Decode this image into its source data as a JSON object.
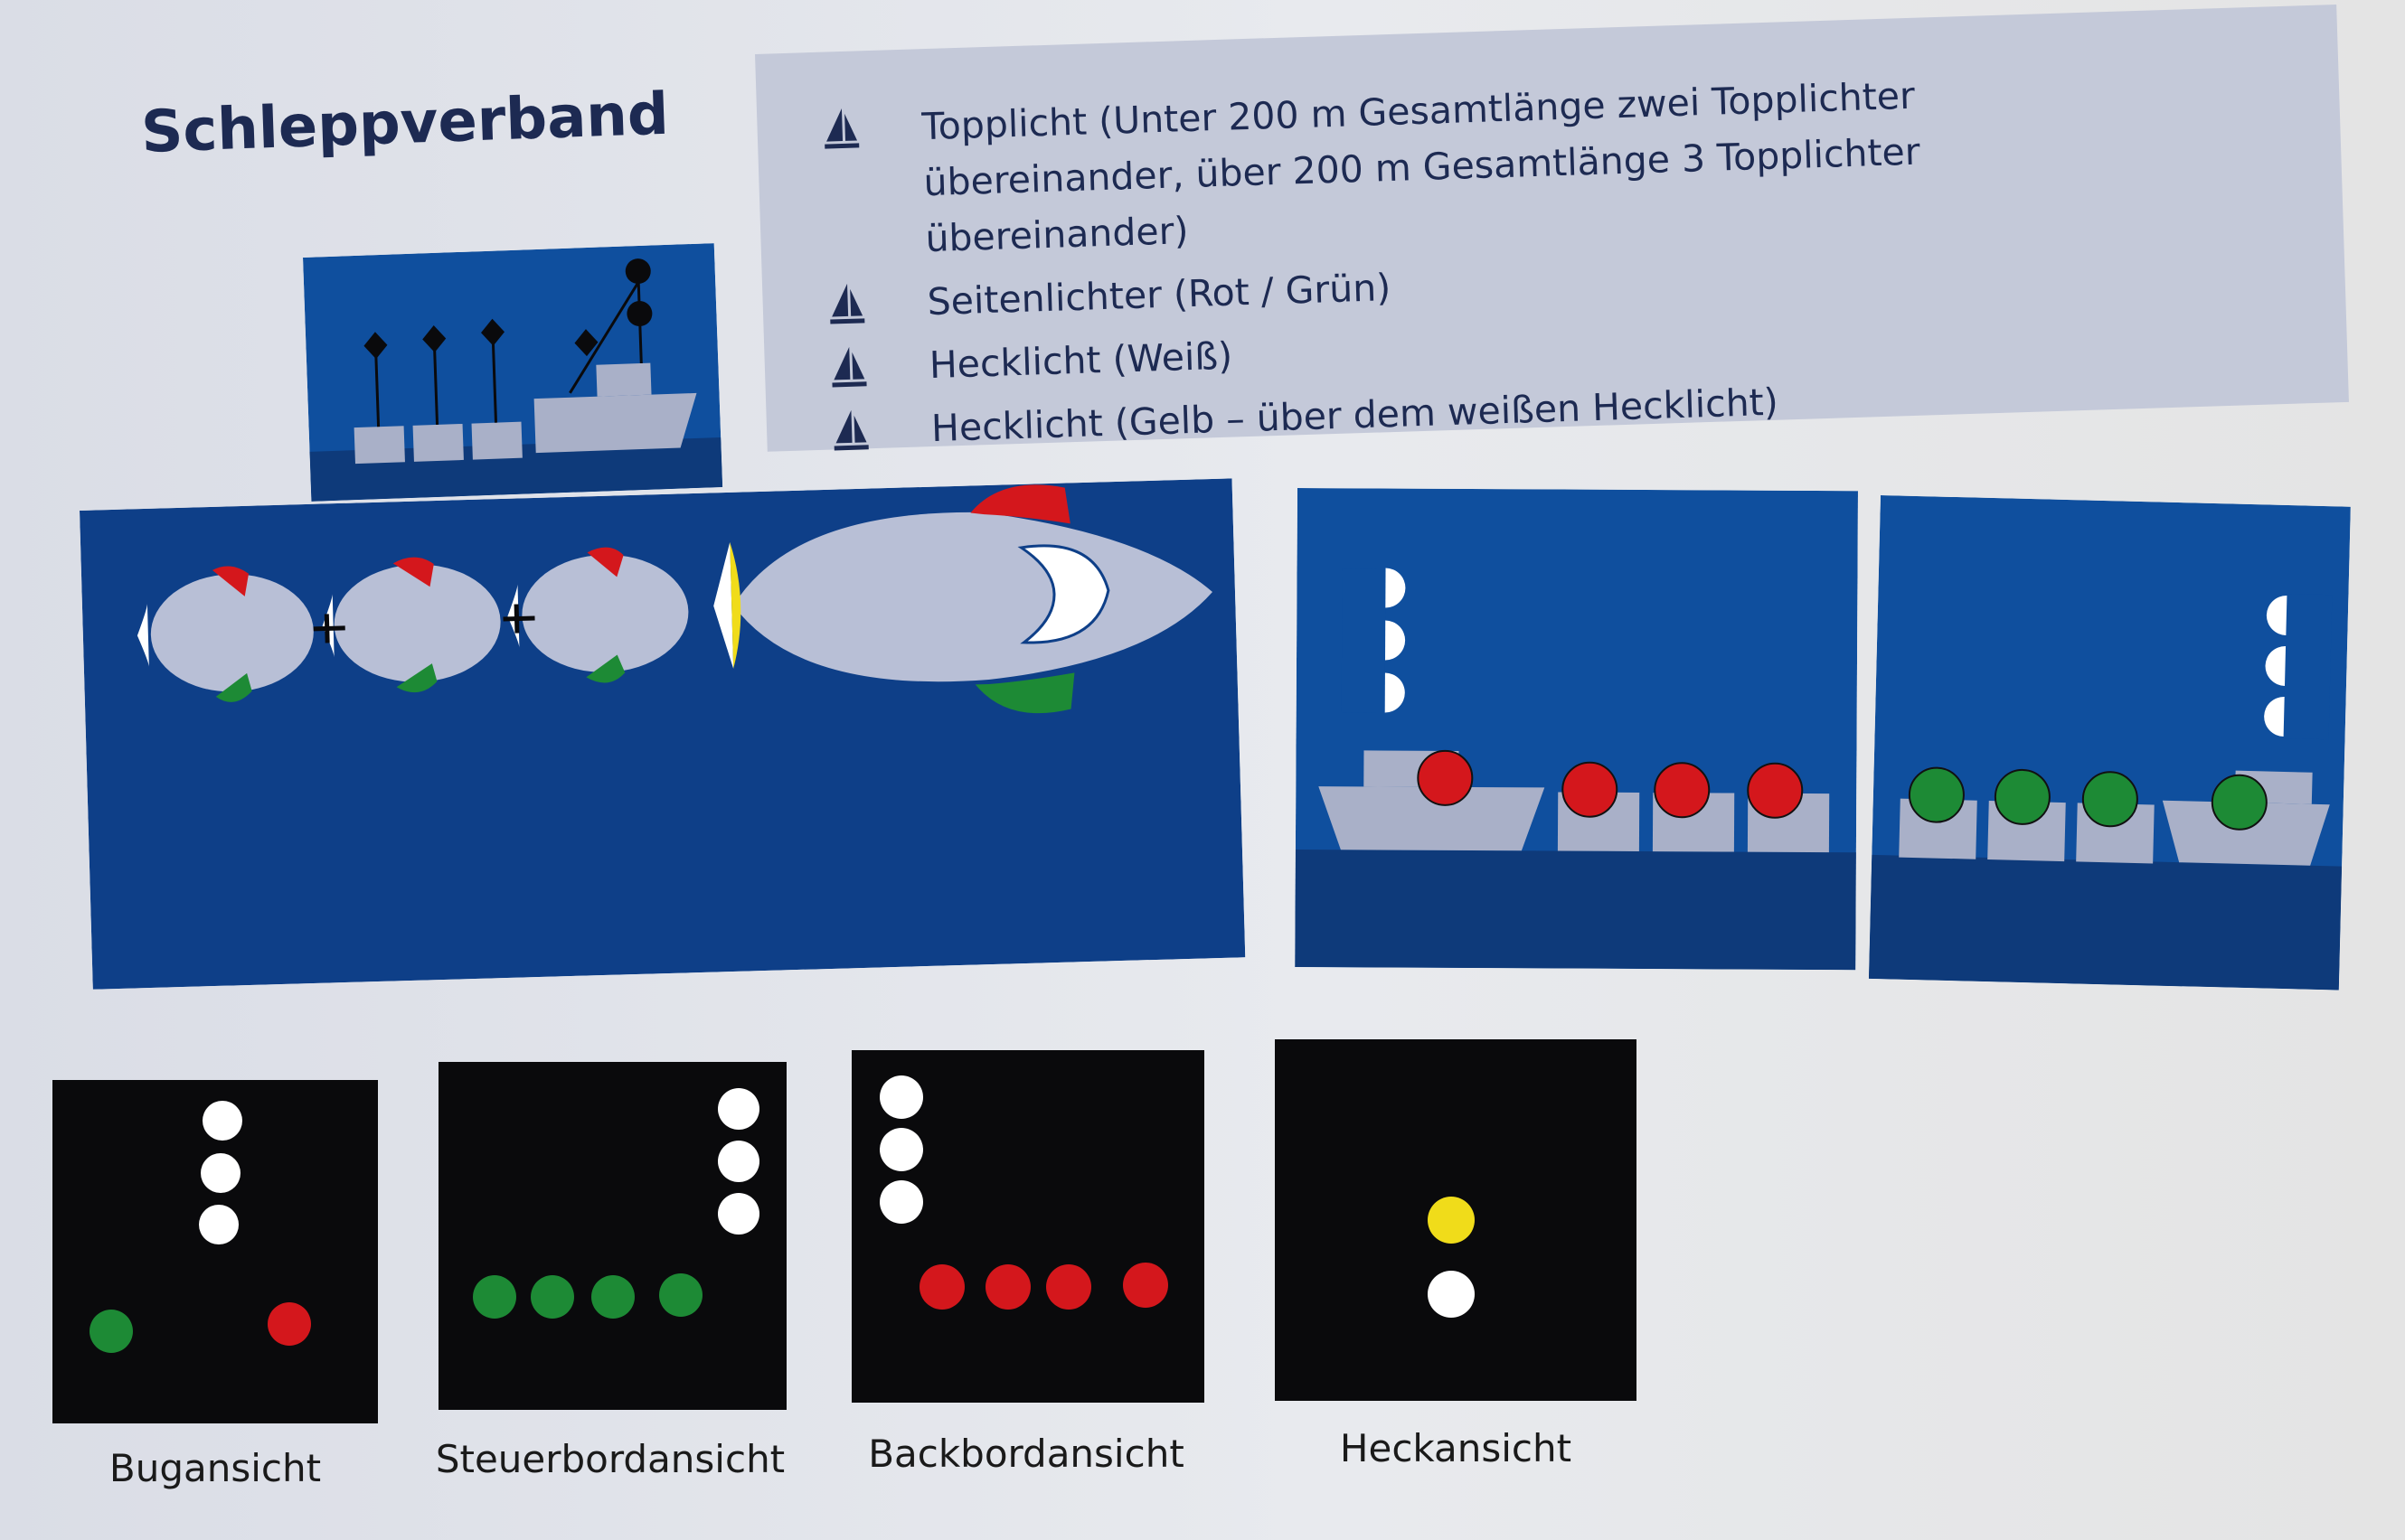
{
  "title": "Schleppverband",
  "legend": [
    {
      "icon": "sail-icon",
      "text": "Topplicht (Unter 200 m Gesamtlänge zwei Topplichter übereinander, über 200 m Gesamtlänge 3 Topplichter übereinander)"
    },
    {
      "icon": "sail-icon",
      "text": "Seitenlichter (Rot / Grün)"
    },
    {
      "icon": "sail-icon",
      "text": "Hecklicht (Weiß)"
    },
    {
      "icon": "sail-icon",
      "text": "Hecklicht (Gelb – über dem weißen Hecklicht)"
    }
  ],
  "views": [
    {
      "label": "Bugansicht"
    },
    {
      "label": "Steuerbordansicht"
    },
    {
      "label": "Backbordansicht"
    },
    {
      "label": "Heckansicht"
    }
  ],
  "colors": {
    "navy": "#1d2a52",
    "sea_blue": "#0f4f9e",
    "deep_blue": "#0e3a7a",
    "hull_grey": "#a9b0c8",
    "red_light": "#d4171c",
    "green_light": "#1d8a35",
    "yellow_light": "#f0dc1a",
    "white_light": "#ffffff",
    "night": "#0a0a0c"
  }
}
